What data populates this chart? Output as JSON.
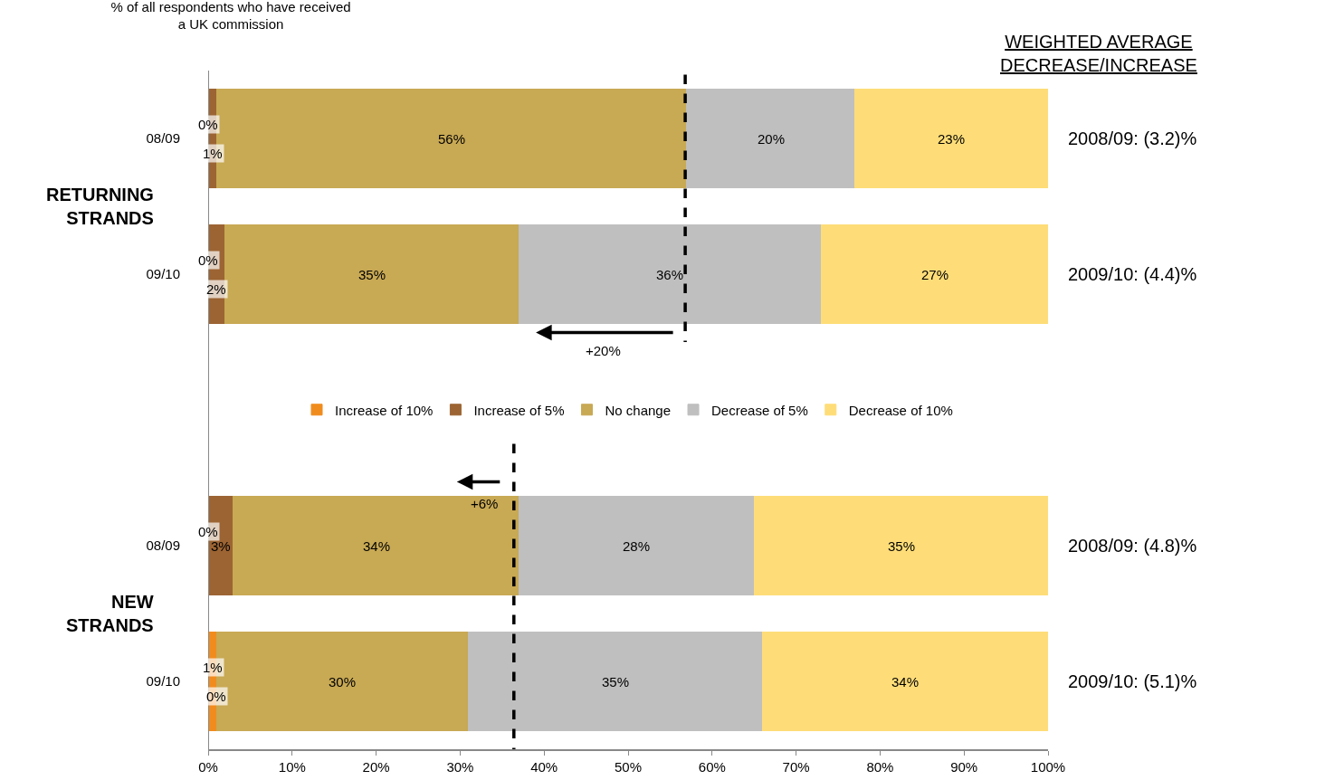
{
  "chart_data": {
    "type": "bar",
    "orientation": "horizontal",
    "stacked": true,
    "title": "% of all respondents who have received\na UK commission",
    "categories": [
      "08/09",
      "09/10",
      null,
      "08/09",
      "09/10"
    ],
    "series": [
      {
        "name": "Increase of 10%",
        "color": "#f08c1e",
        "values": [
          0,
          0,
          null,
          0,
          1
        ],
        "value_labels": [
          "0%",
          "0%",
          null,
          "0%",
          "1%"
        ]
      },
      {
        "name": "Increase of 5%",
        "color": "#9c6433",
        "values": [
          1,
          2,
          null,
          3,
          0
        ],
        "value_labels": [
          "1%",
          "2%",
          null,
          "3%",
          "0%"
        ]
      },
      {
        "name": "No change",
        "color": "#c8a954",
        "values": [
          56,
          35,
          null,
          34,
          30
        ],
        "value_labels": [
          "56%",
          "35%",
          null,
          "34%",
          "30%"
        ]
      },
      {
        "name": "Decrease of 5%",
        "color": "#bfbfbf",
        "values": [
          20,
          36,
          null,
          28,
          35
        ],
        "value_labels": [
          "20%",
          "36%",
          null,
          "28%",
          "35%"
        ]
      },
      {
        "name": "Decrease of 10%",
        "color": "#fedd78",
        "values": [
          23,
          27,
          null,
          35,
          34
        ],
        "value_labels": [
          "23%",
          "27%",
          null,
          "35%",
          "34%"
        ]
      }
    ],
    "xlim": [
      0,
      100
    ],
    "xticks": [
      {
        "value": 0,
        "label": "0%"
      },
      {
        "value": 10,
        "label": "10%"
      },
      {
        "value": 20,
        "label": "20%"
      },
      {
        "value": 30,
        "label": "30%"
      },
      {
        "value": 40,
        "label": "40%"
      },
      {
        "value": 50,
        "label": "50%"
      },
      {
        "value": 60,
        "label": "60%"
      },
      {
        "value": 70,
        "label": "70%"
      },
      {
        "value": 80,
        "label": "80%"
      },
      {
        "value": 90,
        "label": "90%"
      },
      {
        "value": 100,
        "label": "100%"
      }
    ],
    "ref_lines": [
      {
        "axis": "x",
        "value": 56.8,
        "line_style": "dashed",
        "color": "#000000"
      },
      {
        "axis": "x",
        "value": 36.4,
        "line_style": "dashed",
        "color": "#000000"
      }
    ],
    "annotations": [
      "+20%",
      "+6%",
      "WEIGHTED AVERAGE\nDECREASE/INCREASE",
      "2008/09: (3.2)%",
      "2009/10: (4.4)%",
      "2008/09: (4.8)%",
      "2009/10: (5.1)%",
      "RETURNING\nSTRANDS",
      "NEW\nSTRANDS"
    ],
    "legend": "center",
    "grid": false
  }
}
